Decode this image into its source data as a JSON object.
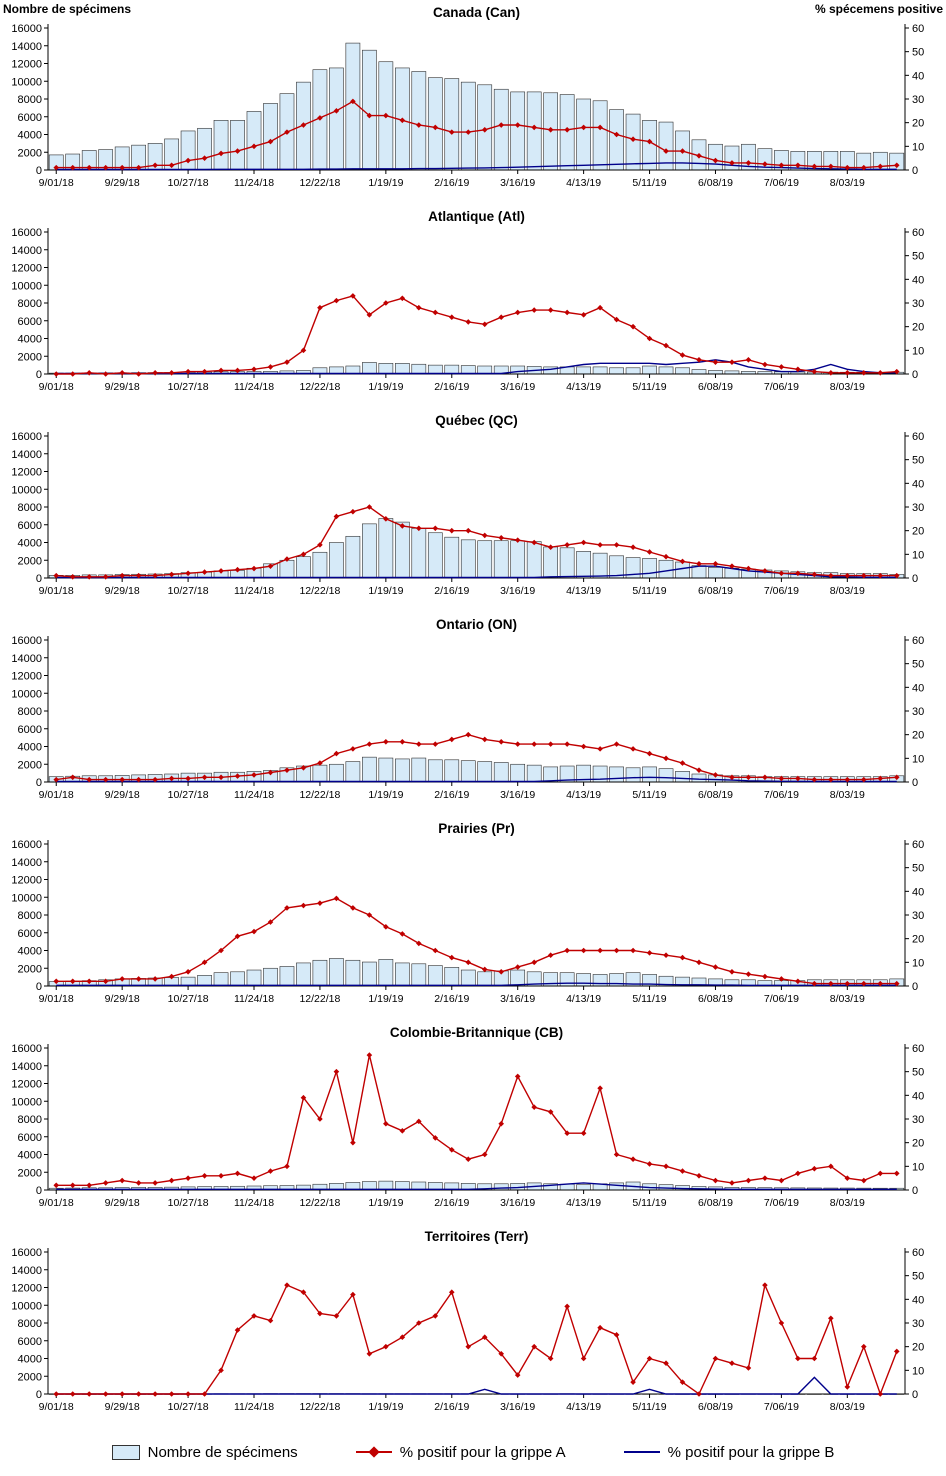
{
  "header": {
    "left_axis_title": "Nombre de spécimens",
    "right_axis_title": "% spécemens positive"
  },
  "colors": {
    "bar_fill": "#D6EAF8",
    "bar_stroke": "#2F2F2F",
    "flu_a": "#C00000",
    "flu_b": "#00008B"
  },
  "axes": {
    "left_min": 0,
    "left_max": 16000,
    "left_step": 2000,
    "right_min": 0,
    "right_max": 60,
    "right_step": 10,
    "x_tick_labels": [
      "9/01/18",
      "9/29/18",
      "10/27/18",
      "11/24/18",
      "12/22/18",
      "1/19/19",
      "2/16/19",
      "3/16/19",
      "4/13/19",
      "5/11/19",
      "6/08/19",
      "7/06/19",
      "8/03/19"
    ]
  },
  "legend": {
    "items": [
      {
        "label": "Nombre de spécimens"
      },
      {
        "label": "% positif pour la grippe A"
      },
      {
        "label": "% positif pour la grippe B"
      }
    ]
  },
  "chart_data": [
    {
      "id": "can",
      "type": "bar+line",
      "title": "Canada (Can)",
      "specimens": [
        1700,
        1800,
        2200,
        2300,
        2600,
        2800,
        3000,
        3500,
        4400,
        4700,
        5600,
        5600,
        6600,
        7500,
        8600,
        9900,
        11300,
        11500,
        14300,
        13500,
        12200,
        11500,
        11100,
        10400,
        10300,
        9900,
        9600,
        9100,
        8800,
        8800,
        8700,
        8500,
        8000,
        7800,
        6800,
        6300,
        5600,
        5400,
        4400,
        3400,
        2900,
        2700,
        2900,
        2400,
        2200,
        2100,
        2100,
        2100,
        2100,
        1900,
        2000,
        1900
      ],
      "flu_a": [
        1,
        1,
        1,
        1,
        1,
        1,
        2,
        2,
        4,
        5,
        7,
        8,
        10,
        12,
        16,
        19,
        22,
        25,
        29,
        23,
        23,
        21,
        19,
        18,
        16,
        16,
        17,
        19,
        19,
        18,
        17,
        17,
        18,
        18,
        15,
        13,
        12,
        8,
        8,
        6,
        4,
        3,
        3,
        2.5,
        2,
        2,
        1.5,
        1.5,
        1,
        1,
        1.5,
        2
      ],
      "flu_b": [
        0.2,
        0.2,
        0.2,
        0.2,
        0.2,
        0.2,
        0.2,
        0.2,
        0.2,
        0.2,
        0.3,
        0.3,
        0.3,
        0.3,
        0.3,
        0.3,
        0.4,
        0.4,
        0.5,
        0.5,
        0.5,
        0.5,
        0.6,
        0.6,
        0.7,
        0.8,
        0.9,
        1,
        1.2,
        1.4,
        1.6,
        1.8,
        2,
        2.2,
        2.4,
        2.6,
        2.8,
        3,
        3,
        2.8,
        2.5,
        2,
        1.5,
        1.2,
        1,
        0.8,
        0.6,
        0.5,
        0.4,
        0.3,
        0.3,
        0.3
      ]
    },
    {
      "id": "atl",
      "type": "bar+line",
      "title": "Atlantique (Atl)",
      "specimens": [
        100,
        100,
        120,
        130,
        140,
        150,
        160,
        170,
        200,
        220,
        250,
        260,
        280,
        300,
        350,
        400,
        700,
        800,
        900,
        1300,
        1200,
        1200,
        1100,
        1000,
        1000,
        950,
        900,
        900,
        900,
        850,
        800,
        800,
        800,
        800,
        700,
        700,
        900,
        800,
        700,
        500,
        400,
        350,
        300,
        280,
        250,
        230,
        220,
        210,
        200,
        200,
        200,
        200
      ],
      "flu_a": [
        0,
        0,
        0.5,
        0,
        0.5,
        0,
        0.5,
        0.5,
        1,
        1,
        1.5,
        1.5,
        2,
        3,
        5,
        10,
        28,
        31,
        33,
        25,
        30,
        32,
        28,
        26,
        24,
        22,
        21,
        24,
        26,
        27,
        27,
        26,
        25,
        28,
        23,
        20,
        15,
        12,
        8,
        6,
        5,
        5,
        6,
        4,
        3,
        2,
        1,
        0.5,
        0.5,
        0.5,
        0.5,
        1
      ],
      "flu_b": [
        0.2,
        0.2,
        0.2,
        0.2,
        0.2,
        0.2,
        0.2,
        0.2,
        0.2,
        0.2,
        0.2,
        0.2,
        0.2,
        0.2,
        0.2,
        0.2,
        0.2,
        0.2,
        0.2,
        0.2,
        0.2,
        0.2,
        0.2,
        0.2,
        0.2,
        0.2,
        0.2,
        0.2,
        1,
        1.5,
        2,
        3,
        4,
        4.5,
        4.5,
        4.5,
        4.5,
        4,
        4.5,
        5,
        6,
        5,
        3,
        2,
        1,
        1,
        2,
        4,
        2,
        1,
        0.5,
        0.5
      ]
    },
    {
      "id": "qc",
      "type": "bar+line",
      "title": "Québec (QC)",
      "specimens": [
        300,
        300,
        350,
        350,
        400,
        420,
        450,
        500,
        600,
        650,
        800,
        850,
        1100,
        1600,
        2000,
        2400,
        2900,
        4000,
        4700,
        6100,
        6700,
        6300,
        5600,
        5100,
        4600,
        4300,
        4200,
        4200,
        4200,
        4100,
        3500,
        3400,
        3000,
        2800,
        2500,
        2300,
        2200,
        2000,
        1800,
        1400,
        1200,
        1100,
        1000,
        900,
        800,
        700,
        600,
        600,
        500,
        500,
        500,
        400
      ],
      "flu_a": [
        1,
        0.5,
        0.5,
        0.5,
        1,
        1,
        1,
        1.5,
        2,
        2.5,
        3,
        3.5,
        4,
        5,
        8,
        10,
        14,
        26,
        28,
        30,
        25,
        22,
        21,
        21,
        20,
        20,
        18,
        17,
        16,
        15,
        13,
        14,
        15,
        14,
        14,
        13,
        11,
        9,
        7,
        6,
        6,
        5,
        4,
        3,
        2,
        2,
        1.5,
        1,
        1,
        1,
        1,
        1
      ],
      "flu_b": [
        0.2,
        0.2,
        0.2,
        0.2,
        0.2,
        0.2,
        0.2,
        0.2,
        0.2,
        0.2,
        0.2,
        0.2,
        0.2,
        0.2,
        0.2,
        0.2,
        0.2,
        0.2,
        0.2,
        0.2,
        0.2,
        0.2,
        0.2,
        0.2,
        0.2,
        0.2,
        0.2,
        0.2,
        0.2,
        0.2,
        0.5,
        0.6,
        0.7,
        0.8,
        1,
        1.5,
        2,
        3,
        4,
        5,
        5,
        4,
        3,
        2.5,
        2,
        1.5,
        1,
        0.5,
        0.5,
        0.3,
        0.3,
        0.3
      ]
    },
    {
      "id": "on",
      "type": "bar+line",
      "title": "Ontario (ON)",
      "specimens": [
        600,
        650,
        700,
        700,
        750,
        800,
        850,
        900,
        1000,
        1000,
        1100,
        1100,
        1200,
        1300,
        1600,
        1800,
        1900,
        2000,
        2300,
        2800,
        2700,
        2600,
        2700,
        2500,
        2500,
        2400,
        2300,
        2200,
        2000,
        1900,
        1700,
        1800,
        1900,
        1800,
        1700,
        1600,
        1700,
        1500,
        1200,
        900,
        800,
        700,
        700,
        600,
        600,
        600,
        600,
        600,
        600,
        600,
        600,
        700
      ],
      "flu_a": [
        1,
        2,
        1,
        1,
        1,
        1,
        1,
        1.5,
        1.5,
        2,
        2,
        2.5,
        3,
        4,
        5,
        6,
        8,
        12,
        14,
        16,
        17,
        17,
        16,
        16,
        18,
        20,
        18,
        17,
        16,
        16,
        16,
        16,
        15,
        14,
        16,
        14,
        12,
        10,
        8,
        5,
        3,
        2,
        2,
        2,
        1.5,
        1.5,
        1,
        1,
        1,
        1,
        1.5,
        2
      ],
      "flu_b": [
        0.2,
        0.2,
        0.2,
        0.2,
        0.2,
        0.2,
        0.2,
        0.2,
        0.2,
        0.2,
        0.2,
        0.2,
        0.2,
        0.2,
        0.2,
        0.2,
        0.2,
        0.2,
        0.2,
        0.2,
        0.2,
        0.2,
        0.2,
        0.2,
        0.2,
        0.2,
        0.2,
        0.2,
        0.2,
        0.2,
        0.5,
        0.8,
        1,
        1.2,
        1.5,
        1.8,
        2,
        1.8,
        1.5,
        1.2,
        1,
        0.8,
        0.5,
        0.4,
        0.3,
        0.3,
        0.2,
        0.2,
        0.2,
        0.2,
        0.2,
        0.2
      ]
    },
    {
      "id": "pr",
      "type": "bar+line",
      "title": "Prairies (Pr)",
      "specimens": [
        500,
        550,
        600,
        700,
        800,
        850,
        900,
        950,
        1000,
        1200,
        1500,
        1600,
        1800,
        2000,
        2200,
        2600,
        2900,
        3100,
        2900,
        2700,
        3000,
        2600,
        2500,
        2300,
        2100,
        1800,
        1600,
        1700,
        1800,
        1600,
        1500,
        1500,
        1400,
        1300,
        1400,
        1500,
        1300,
        1100,
        1000,
        900,
        800,
        700,
        700,
        600,
        600,
        600,
        700,
        700,
        700,
        700,
        700,
        800
      ],
      "flu_a": [
        2,
        2,
        2,
        2,
        3,
        3,
        3,
        4,
        6,
        10,
        15,
        21,
        23,
        27,
        33,
        34,
        35,
        37,
        33,
        30,
        25,
        22,
        18,
        15,
        12,
        10,
        7,
        6,
        8,
        10,
        13,
        15,
        15,
        15,
        15,
        15,
        14,
        13,
        12,
        10,
        8,
        6,
        5,
        4,
        3,
        2,
        1,
        1,
        1,
        1,
        1,
        1
      ],
      "flu_b": [
        0.3,
        0.3,
        0.3,
        0.3,
        0.3,
        0.3,
        0.3,
        0.3,
        0.3,
        0.3,
        0.3,
        0.3,
        0.3,
        0.3,
        0.3,
        0.3,
        0.3,
        0.3,
        0.3,
        0.3,
        0.3,
        0.3,
        0.3,
        0.3,
        0.3,
        0.3,
        0.3,
        0.3,
        0.5,
        0.8,
        1,
        1.2,
        1.2,
        1,
        1,
        0.8,
        0.8,
        0.6,
        0.5,
        0.5,
        0.4,
        0.4,
        0.3,
        0.3,
        0.3,
        0.3,
        0.3,
        0.3,
        0.3,
        0.3,
        0.3,
        0.3
      ]
    },
    {
      "id": "cb",
      "type": "bar+line",
      "title": "Colombie-Britannique (CB)",
      "specimens": [
        200,
        220,
        250,
        250,
        280,
        300,
        300,
        320,
        350,
        380,
        400,
        420,
        450,
        480,
        500,
        550,
        650,
        750,
        850,
        950,
        1000,
        950,
        900,
        850,
        800,
        750,
        700,
        700,
        750,
        800,
        700,
        650,
        600,
        700,
        800,
        900,
        700,
        600,
        500,
        400,
        350,
        300,
        280,
        260,
        250,
        240,
        230,
        220,
        220,
        210,
        200,
        200
      ],
      "flu_a": [
        2,
        2,
        2,
        3,
        4,
        3,
        3,
        4,
        5,
        6,
        6,
        7,
        5,
        8,
        10,
        39,
        30,
        50,
        20,
        57,
        28,
        25,
        29,
        22,
        17,
        13,
        15,
        28,
        48,
        35,
        33,
        24,
        24,
        43,
        15,
        13,
        11,
        10,
        8,
        6,
        4,
        3,
        4,
        5,
        4,
        7,
        9,
        10,
        5,
        4,
        7,
        7
      ],
      "flu_b": [
        0.3,
        0.3,
        0.3,
        0.3,
        0.3,
        0.3,
        0.3,
        0.3,
        0.3,
        0.3,
        0.3,
        0.3,
        0.3,
        0.3,
        0.3,
        0.3,
        0.3,
        0.3,
        0.3,
        0.3,
        0.3,
        0.3,
        0.3,
        0.3,
        0.3,
        0.3,
        0.5,
        0.8,
        1,
        1.5,
        2,
        2.5,
        3,
        2.5,
        2,
        1.5,
        1,
        0.8,
        0.6,
        0.5,
        0.4,
        0.3,
        0.3,
        0.3,
        0.3,
        0.3,
        0.3,
        0.3,
        0.3,
        0.3,
        0.3,
        0.3
      ]
    },
    {
      "id": "terr",
      "type": "bar+line",
      "title": "Territoires (Terr)",
      "specimens": [
        10,
        10,
        10,
        10,
        10,
        10,
        10,
        10,
        20,
        20,
        30,
        30,
        30,
        40,
        40,
        40,
        40,
        40,
        40,
        30,
        30,
        30,
        30,
        30,
        30,
        30,
        20,
        20,
        20,
        20,
        20,
        30,
        20,
        20,
        20,
        20,
        20,
        20,
        10,
        10,
        10,
        10,
        20,
        20,
        20,
        10,
        10,
        10,
        10,
        10,
        10,
        10
      ],
      "flu_a": [
        0,
        0,
        0,
        0,
        0,
        0,
        0,
        0,
        0,
        0,
        10,
        27,
        33,
        31,
        46,
        43,
        34,
        33,
        42,
        17,
        20,
        24,
        30,
        33,
        43,
        20,
        24,
        17,
        8,
        20,
        15,
        37,
        15,
        28,
        25,
        5,
        15,
        13,
        5,
        0,
        15,
        13,
        11,
        46,
        30,
        15,
        15,
        32,
        3,
        20,
        0,
        18
      ],
      "flu_b": [
        0,
        0,
        0,
        0,
        0,
        0,
        0,
        0,
        0,
        0,
        0,
        0,
        0,
        0,
        0,
        0,
        0,
        0,
        0,
        0,
        0,
        0,
        0,
        0,
        0,
        0,
        2,
        0,
        0,
        0,
        0,
        0,
        0,
        0,
        0,
        0,
        2,
        0,
        0,
        0,
        0,
        0,
        0,
        0,
        0,
        0,
        7,
        0,
        0,
        0,
        0,
        0
      ]
    }
  ]
}
